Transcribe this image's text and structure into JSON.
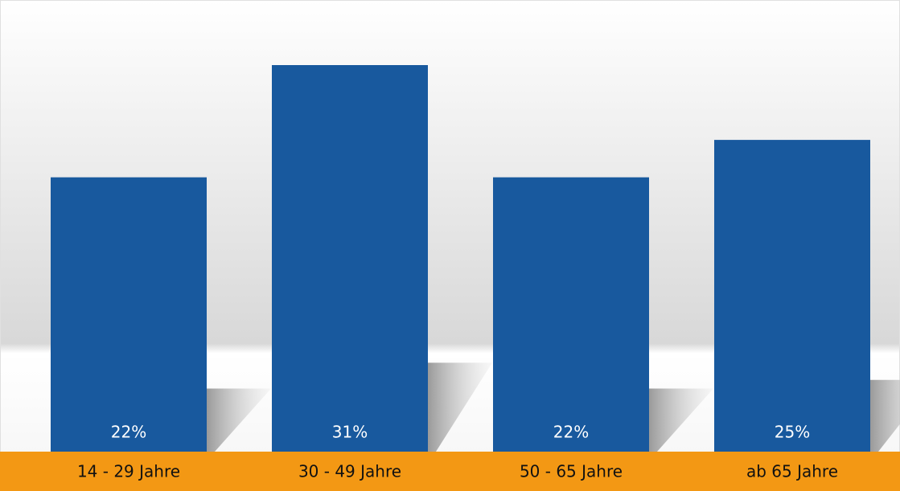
{
  "chart_data": {
    "type": "bar",
    "categories": [
      "14 - 29 Jahre",
      "30 - 49 Jahre",
      "50 - 65 Jahre",
      "ab 65 Jahre"
    ],
    "values": [
      22,
      31,
      22,
      25
    ],
    "value_labels": [
      "22%",
      "31%",
      "22%",
      "25%"
    ],
    "color": "#18599e",
    "band_color": "#f39814"
  }
}
